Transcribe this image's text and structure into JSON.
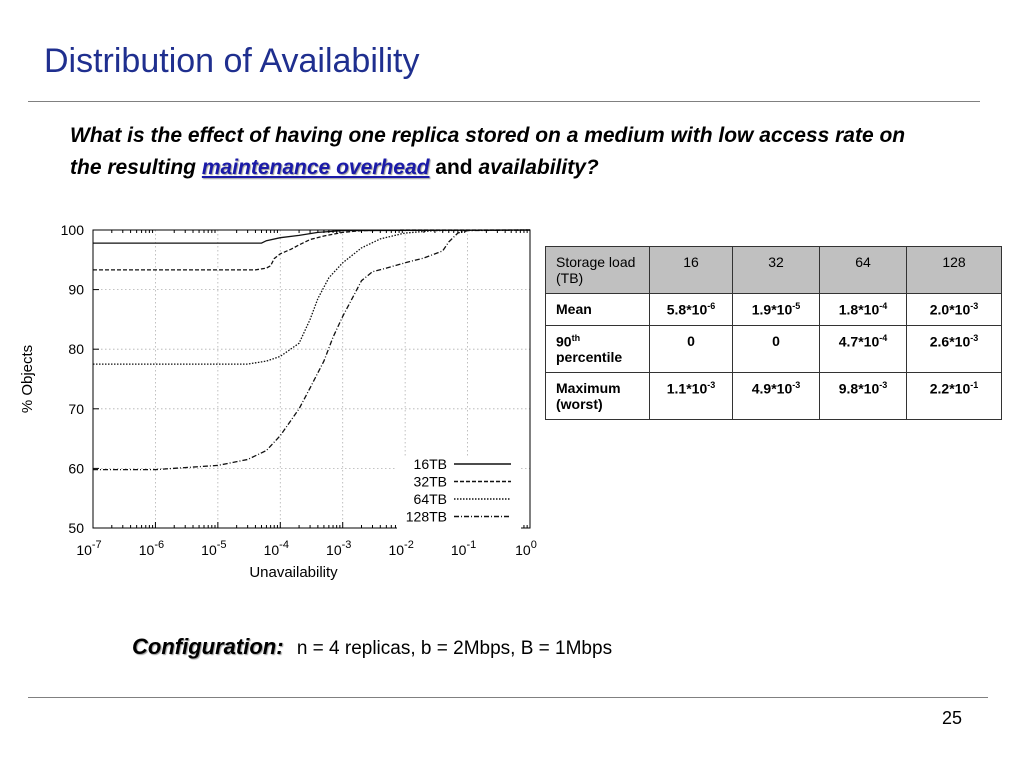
{
  "slide": {
    "title": "Distribution of Availability",
    "question": {
      "part1": "What is the effect of having one replica stored on a medium with low access rate on the resulting",
      "keyword1": "maintenance overhead",
      "and": "and",
      "keyword2": "availability?"
    },
    "configuration": {
      "label": "Configuration:",
      "text": "n = 4 replicas, b = 2Mbps, B = 1Mbps"
    },
    "page_number": "25"
  },
  "chart_data": {
    "type": "line",
    "xlabel": "Unavailability",
    "ylabel": "% Objects",
    "x_scale": "log",
    "xlim": [
      1e-07,
      1
    ],
    "ylim": [
      50,
      100
    ],
    "x_ticks": [
      {
        "value": 1e-07,
        "base": "10",
        "exp": "-7"
      },
      {
        "value": 1e-06,
        "base": "10",
        "exp": "-6"
      },
      {
        "value": 1e-05,
        "base": "10",
        "exp": "-5"
      },
      {
        "value": 0.0001,
        "base": "10",
        "exp": "-4"
      },
      {
        "value": 0.001,
        "base": "10",
        "exp": "-3"
      },
      {
        "value": 0.01,
        "base": "10",
        "exp": "-2"
      },
      {
        "value": 0.1,
        "base": "10",
        "exp": "-1"
      },
      {
        "value": 1,
        "base": "10",
        "exp": "0"
      }
    ],
    "y_ticks": [
      50,
      60,
      70,
      80,
      90,
      100
    ],
    "grid": true,
    "legend_position": "bottom-right",
    "series": [
      {
        "name": "16TB",
        "style": "solid",
        "points": [
          [
            1e-07,
            97.8
          ],
          [
            5e-05,
            97.8
          ],
          [
            6e-05,
            98.2
          ],
          [
            0.0001,
            98.7
          ],
          [
            0.0002,
            99.1
          ],
          [
            0.0004,
            99.6
          ],
          [
            0.001,
            99.9
          ],
          [
            1,
            100
          ]
        ]
      },
      {
        "name": "32TB",
        "style": "dashed",
        "points": [
          [
            1e-07,
            93.3
          ],
          [
            4e-05,
            93.3
          ],
          [
            6e-05,
            93.6
          ],
          [
            7e-05,
            94.0
          ],
          [
            8e-05,
            95.2
          ],
          [
            0.0001,
            96.0
          ],
          [
            0.00015,
            96.8
          ],
          [
            0.0002,
            97.5
          ],
          [
            0.0003,
            98.4
          ],
          [
            0.0005,
            99.0
          ],
          [
            0.001,
            99.6
          ],
          [
            0.002,
            99.9
          ],
          [
            0.01,
            100
          ],
          [
            1,
            100
          ]
        ]
      },
      {
        "name": "64TB",
        "style": "dotted",
        "points": [
          [
            1e-07,
            77.5
          ],
          [
            3e-05,
            77.5
          ],
          [
            6e-05,
            78.0
          ],
          [
            0.0001,
            78.8
          ],
          [
            0.0002,
            81.0
          ],
          [
            0.0003,
            85.0
          ],
          [
            0.0004,
            88.5
          ],
          [
            0.0006,
            92.0
          ],
          [
            0.001,
            94.5
          ],
          [
            0.002,
            97.0
          ],
          [
            0.004,
            98.5
          ],
          [
            0.01,
            99.5
          ],
          [
            0.03,
            99.9
          ],
          [
            1,
            100
          ]
        ]
      },
      {
        "name": "128TB",
        "style": "dashdot",
        "points": [
          [
            1e-07,
            59.8
          ],
          [
            1e-06,
            59.8
          ],
          [
            1e-05,
            60.5
          ],
          [
            3e-05,
            61.5
          ],
          [
            6e-05,
            63.0
          ],
          [
            0.0001,
            65.5
          ],
          [
            0.0002,
            70.0
          ],
          [
            0.0003,
            73.5
          ],
          [
            0.0005,
            78.0
          ],
          [
            0.0007,
            82.0
          ],
          [
            0.001,
            85.5
          ],
          [
            0.0015,
            89.0
          ],
          [
            0.002,
            91.5
          ],
          [
            0.003,
            93.0
          ],
          [
            0.005,
            93.6
          ],
          [
            0.01,
            94.5
          ],
          [
            0.02,
            95.3
          ],
          [
            0.04,
            96.5
          ],
          [
            0.05,
            98.0
          ],
          [
            0.07,
            99.5
          ],
          [
            0.1,
            99.9
          ],
          [
            1,
            100
          ]
        ]
      }
    ]
  },
  "table": {
    "header": {
      "corner": "Storage load (TB)",
      "cols": [
        "16",
        "32",
        "64",
        "128"
      ]
    },
    "rows": [
      {
        "label": "Mean",
        "label_sup": "",
        "label_tail": "",
        "cells": [
          {
            "base": "5.8*10",
            "exp": "-6"
          },
          {
            "base": "1.9*10",
            "exp": "-5"
          },
          {
            "base": "1.8*10",
            "exp": "-4"
          },
          {
            "base": "2.0*10",
            "exp": "-3"
          }
        ]
      },
      {
        "label": "90",
        "label_sup": "th",
        "label_tail": "percentile",
        "cells": [
          {
            "base": "0",
            "exp": ""
          },
          {
            "base": "0",
            "exp": ""
          },
          {
            "base": "4.7*10",
            "exp": "-4"
          },
          {
            "base": "2.6*10",
            "exp": "-3"
          }
        ]
      },
      {
        "label": "Maximum (worst)",
        "label_sup": "",
        "label_tail": "",
        "cells": [
          {
            "base": "1.1*10",
            "exp": "-3"
          },
          {
            "base": "4.9*10",
            "exp": "-3"
          },
          {
            "base": "9.8*10",
            "exp": "-3"
          },
          {
            "base": "2.2*10",
            "exp": "-1"
          }
        ]
      }
    ]
  }
}
